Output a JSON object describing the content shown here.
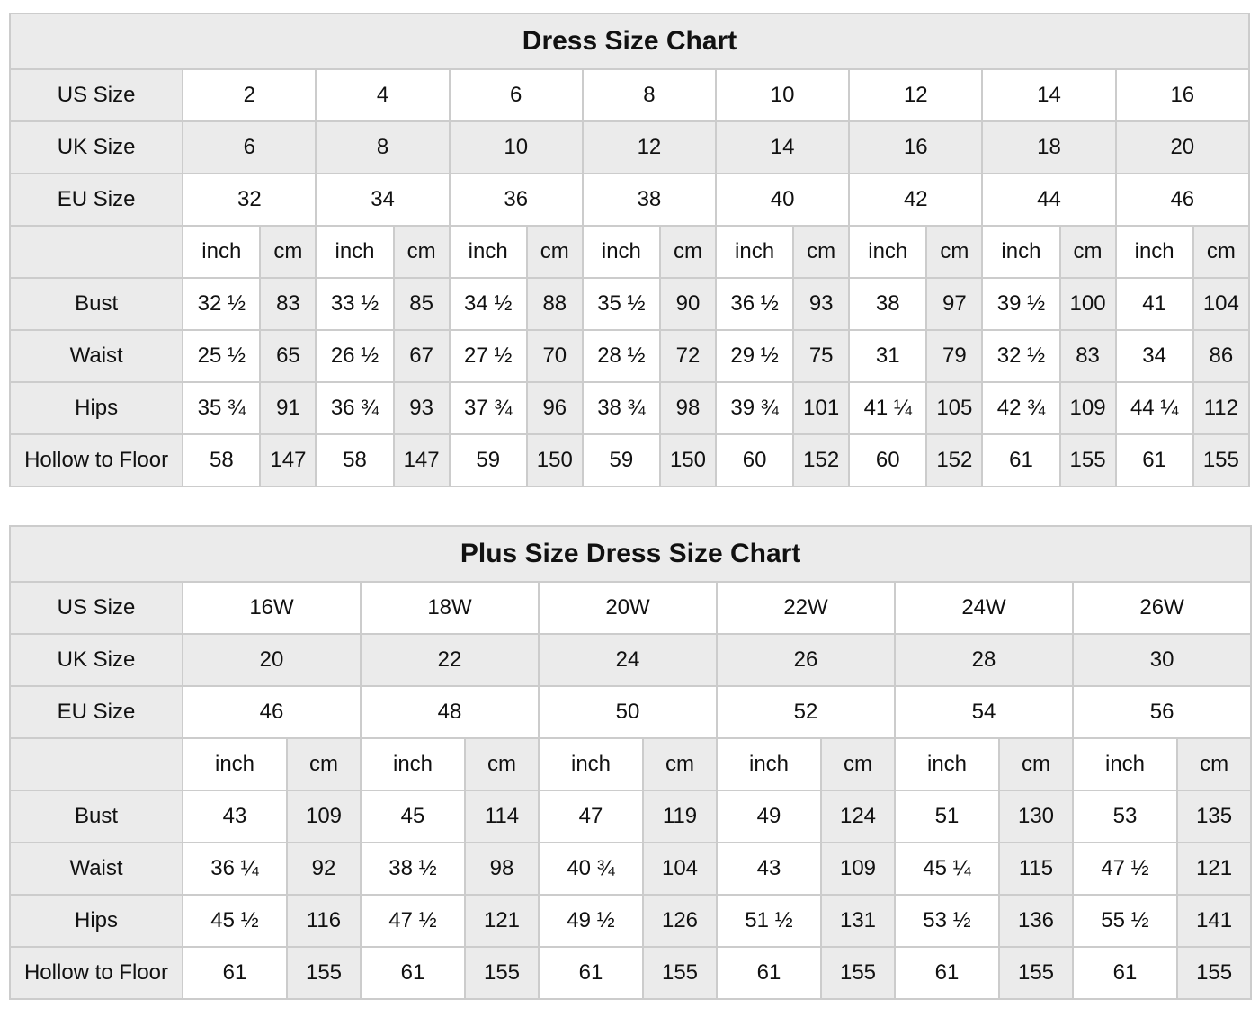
{
  "colors": {
    "shaded_cell_bg": "#ebebeb",
    "grid_border": "#cccccc",
    "text": "#111111",
    "page_bg": "#ffffff"
  },
  "chart_data": [
    {
      "type": "table",
      "title": "Dress Size Chart",
      "unit_labels": {
        "inch": "inch",
        "cm": "cm"
      },
      "size_rows": [
        {
          "label": "US Size",
          "shaded": false,
          "values": [
            "2",
            "4",
            "6",
            "8",
            "10",
            "12",
            "14",
            "16"
          ]
        },
        {
          "label": "UK Size",
          "shaded": true,
          "values": [
            "6",
            "8",
            "10",
            "12",
            "14",
            "16",
            "18",
            "20"
          ]
        },
        {
          "label": "EU Size",
          "shaded": false,
          "values": [
            "32",
            "34",
            "36",
            "38",
            "40",
            "42",
            "44",
            "46"
          ]
        }
      ],
      "measurements": [
        {
          "label": "Bust",
          "inch": [
            "32 ½",
            "33 ½",
            "34 ½",
            "35 ½",
            "36 ½",
            "38",
            "39 ½",
            "41"
          ],
          "cm": [
            "83",
            "85",
            "88",
            "90",
            "93",
            "97",
            "100",
            "104"
          ]
        },
        {
          "label": "Waist",
          "inch": [
            "25 ½",
            "26 ½",
            "27 ½",
            "28 ½",
            "29 ½",
            "31",
            "32 ½",
            "34"
          ],
          "cm": [
            "65",
            "67",
            "70",
            "72",
            "75",
            "79",
            "83",
            "86"
          ]
        },
        {
          "label": "Hips",
          "inch": [
            "35 ¾",
            "36 ¾",
            "37 ¾",
            "38 ¾",
            "39 ¾",
            "41 ¼",
            "42 ¾",
            "44 ¼"
          ],
          "cm": [
            "91",
            "93",
            "96",
            "98",
            "101",
            "105",
            "109",
            "112"
          ]
        },
        {
          "label": "Hollow to Floor",
          "inch": [
            "58",
            "58",
            "59",
            "59",
            "60",
            "60",
            "61",
            "61"
          ],
          "cm": [
            "147",
            "147",
            "150",
            "150",
            "152",
            "152",
            "155",
            "155"
          ]
        }
      ]
    },
    {
      "type": "table",
      "title": "Plus Size Dress Size Chart",
      "unit_labels": {
        "inch": "inch",
        "cm": "cm"
      },
      "size_rows": [
        {
          "label": "US Size",
          "shaded": false,
          "values": [
            "16W",
            "18W",
            "20W",
            "22W",
            "24W",
            "26W"
          ]
        },
        {
          "label": "UK Size",
          "shaded": true,
          "values": [
            "20",
            "22",
            "24",
            "26",
            "28",
            "30"
          ]
        },
        {
          "label": "EU Size",
          "shaded": false,
          "values": [
            "46",
            "48",
            "50",
            "52",
            "54",
            "56"
          ]
        }
      ],
      "measurements": [
        {
          "label": "Bust",
          "inch": [
            "43",
            "45",
            "47",
            "49",
            "51",
            "53"
          ],
          "cm": [
            "109",
            "114",
            "119",
            "124",
            "130",
            "135"
          ]
        },
        {
          "label": "Waist",
          "inch": [
            "36 ¼",
            "38 ½",
            "40 ¾",
            "43",
            "45 ¼",
            "47 ½"
          ],
          "cm": [
            "92",
            "98",
            "104",
            "109",
            "115",
            "121"
          ]
        },
        {
          "label": "Hips",
          "inch": [
            "45 ½",
            "47 ½",
            "49 ½",
            "51 ½",
            "53 ½",
            "55 ½"
          ],
          "cm": [
            "116",
            "121",
            "126",
            "131",
            "136",
            "141"
          ]
        },
        {
          "label": "Hollow to Floor",
          "inch": [
            "61",
            "61",
            "61",
            "61",
            "61",
            "61"
          ],
          "cm": [
            "155",
            "155",
            "155",
            "155",
            "155",
            "155"
          ]
        }
      ]
    }
  ]
}
